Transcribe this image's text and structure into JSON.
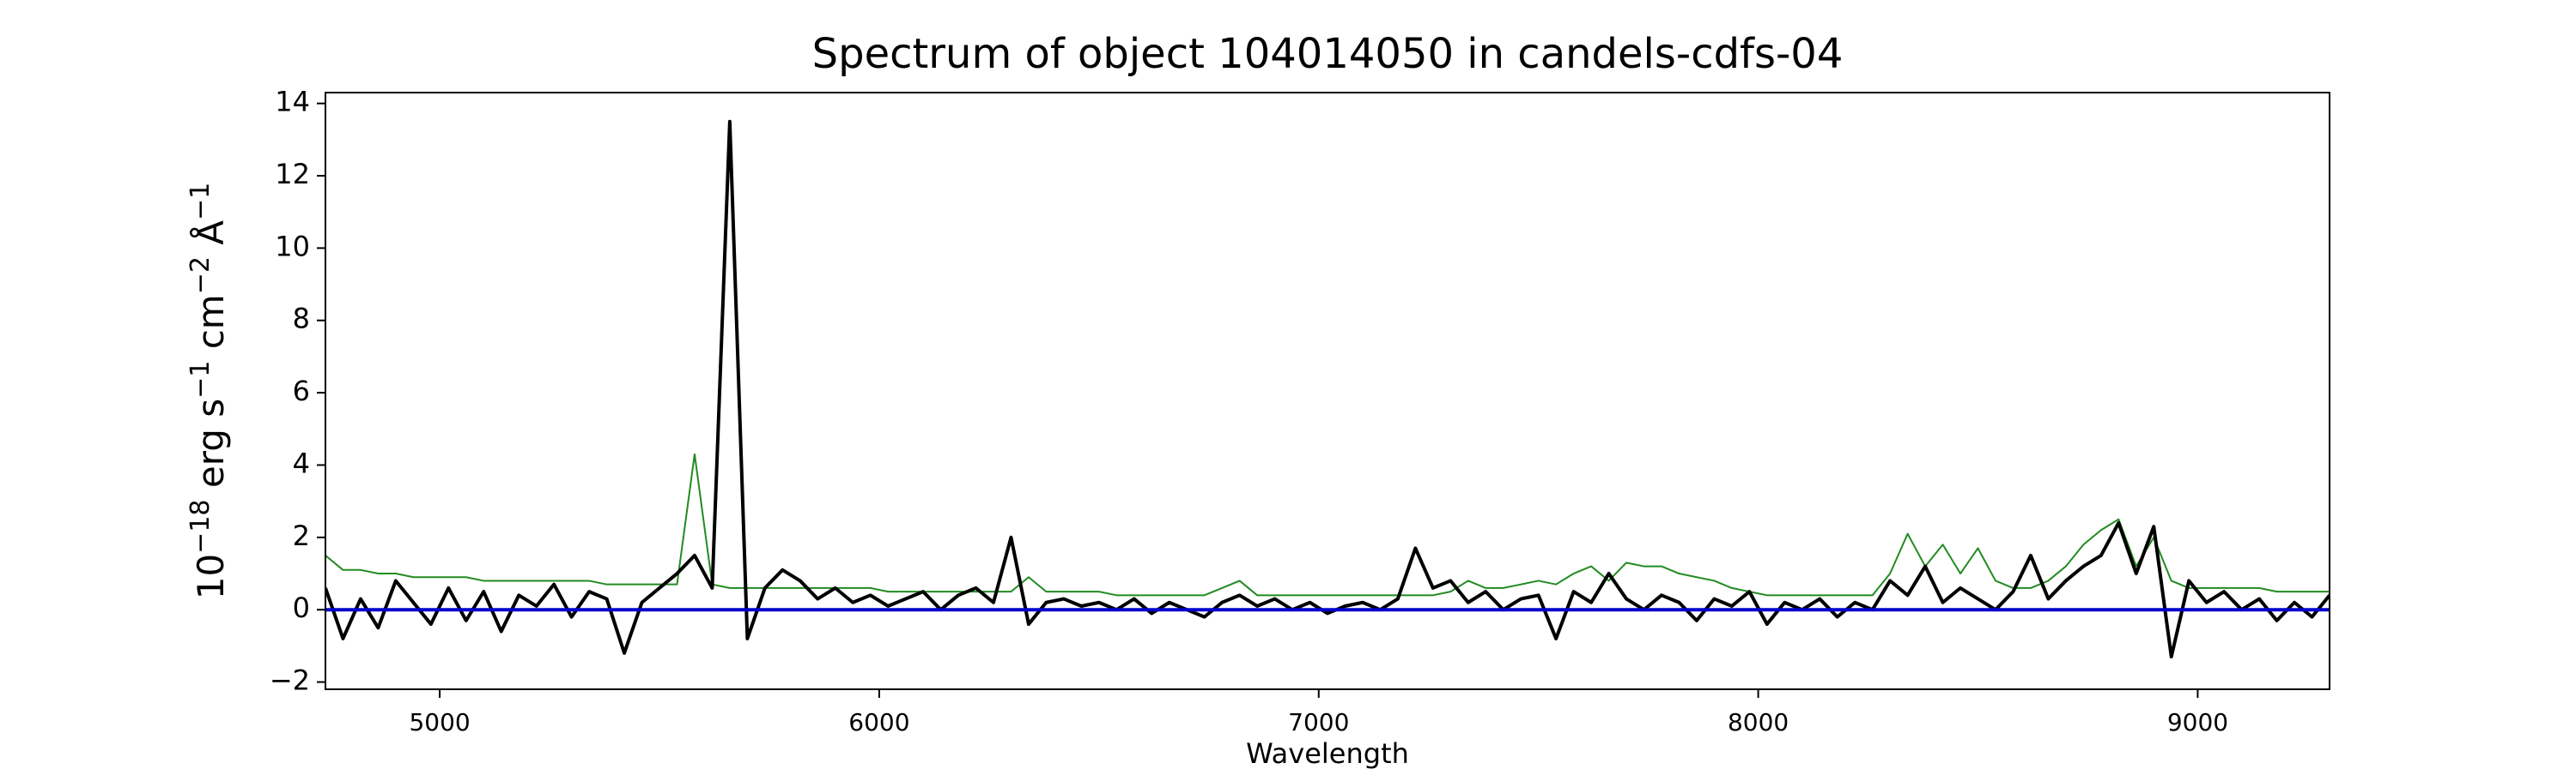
{
  "chart_data": {
    "type": "line",
    "title": "Spectrum of object 104014050 in candels-cdfs-04",
    "xlabel": "Wavelength",
    "ylabel_parts": [
      {
        "text": "10",
        "sup": "−18"
      },
      {
        "text": " erg s",
        "sup": "−1"
      },
      {
        "text": " cm",
        "sup": "−2"
      },
      {
        "text": " Å",
        "sup": "−1"
      }
    ],
    "x": [
      4740,
      4780,
      4820,
      4860,
      4900,
      4940,
      4980,
      5020,
      5060,
      5100,
      5140,
      5180,
      5220,
      5260,
      5300,
      5340,
      5380,
      5420,
      5460,
      5500,
      5540,
      5580,
      5620,
      5660,
      5700,
      5740,
      5780,
      5820,
      5860,
      5900,
      5940,
      5980,
      6020,
      6060,
      6100,
      6140,
      6180,
      6220,
      6260,
      6300,
      6340,
      6380,
      6420,
      6460,
      6500,
      6540,
      6580,
      6620,
      6660,
      6700,
      6740,
      6780,
      6820,
      6860,
      6900,
      6940,
      6980,
      7020,
      7060,
      7100,
      7140,
      7180,
      7220,
      7260,
      7300,
      7340,
      7380,
      7420,
      7460,
      7500,
      7540,
      7580,
      7620,
      7660,
      7700,
      7740,
      7780,
      7820,
      7860,
      7900,
      7940,
      7980,
      8020,
      8060,
      8100,
      8140,
      8180,
      8220,
      8260,
      8300,
      8340,
      8380,
      8420,
      8460,
      8500,
      8540,
      8580,
      8620,
      8660,
      8700,
      8740,
      8780,
      8820,
      8860,
      8900,
      8940,
      8980,
      9020,
      9060,
      9100,
      9140,
      9180,
      9220,
      9260,
      9300
    ],
    "series": [
      {
        "color": "#228b22",
        "width": 2,
        "values": [
          1.5,
          1.1,
          1.1,
          1.0,
          1.0,
          0.9,
          0.9,
          0.9,
          0.9,
          0.8,
          0.8,
          0.8,
          0.8,
          0.8,
          0.8,
          0.8,
          0.7,
          0.7,
          0.7,
          0.7,
          0.7,
          4.3,
          0.7,
          0.6,
          0.6,
          0.6,
          0.6,
          0.6,
          0.6,
          0.6,
          0.6,
          0.6,
          0.5,
          0.5,
          0.5,
          0.5,
          0.5,
          0.5,
          0.5,
          0.5,
          0.9,
          0.5,
          0.5,
          0.5,
          0.5,
          0.4,
          0.4,
          0.4,
          0.4,
          0.4,
          0.4,
          0.6,
          0.8,
          0.4,
          0.4,
          0.4,
          0.4,
          0.4,
          0.4,
          0.4,
          0.4,
          0.4,
          0.4,
          0.4,
          0.5,
          0.8,
          0.6,
          0.6,
          0.7,
          0.8,
          0.7,
          1.0,
          1.2,
          0.8,
          1.3,
          1.2,
          1.2,
          1.0,
          0.9,
          0.8,
          0.6,
          0.5,
          0.4,
          0.4,
          0.4,
          0.4,
          0.4,
          0.4,
          0.4,
          1.0,
          2.1,
          1.2,
          1.8,
          1.0,
          1.7,
          0.8,
          0.6,
          0.6,
          0.8,
          1.2,
          1.8,
          2.2,
          2.5,
          1.2,
          2.0,
          0.8,
          0.6,
          0.6,
          0.6,
          0.6,
          0.6,
          0.5,
          0.5,
          0.5,
          0.5
        ]
      },
      {
        "color": "#000000",
        "width": 4,
        "values": [
          0.6,
          -0.8,
          0.3,
          -0.5,
          0.8,
          0.2,
          -0.4,
          0.6,
          -0.3,
          0.5,
          -0.6,
          0.4,
          0.1,
          0.7,
          -0.2,
          0.5,
          0.3,
          -1.2,
          0.2,
          0.6,
          1.0,
          1.5,
          0.6,
          13.5,
          -0.8,
          0.6,
          1.1,
          0.8,
          0.3,
          0.6,
          0.2,
          0.4,
          0.1,
          0.3,
          0.5,
          0.0,
          0.4,
          0.6,
          0.2,
          2.0,
          -0.4,
          0.2,
          0.3,
          0.1,
          0.2,
          0.0,
          0.3,
          -0.1,
          0.2,
          0.0,
          -0.2,
          0.2,
          0.4,
          0.1,
          0.3,
          0.0,
          0.2,
          -0.1,
          0.1,
          0.2,
          0.0,
          0.3,
          1.7,
          0.6,
          0.8,
          0.2,
          0.5,
          0.0,
          0.3,
          0.4,
          -0.8,
          0.5,
          0.2,
          1.0,
          0.3,
          0.0,
          0.4,
          0.2,
          -0.3,
          0.3,
          0.1,
          0.5,
          -0.4,
          0.2,
          0.0,
          0.3,
          -0.2,
          0.2,
          0.0,
          0.8,
          0.4,
          1.2,
          0.2,
          0.6,
          0.3,
          0.0,
          0.5,
          1.5,
          0.3,
          0.8,
          1.2,
          1.5,
          2.4,
          1.0,
          2.3,
          -1.3,
          0.8,
          0.2,
          0.5,
          0.0,
          0.3,
          -0.3,
          0.2,
          -0.2,
          0.4
        ]
      }
    ],
    "hlines": [
      {
        "y": 0,
        "color": "#0000cc",
        "width": 4
      }
    ],
    "xlim": [
      4740,
      9300
    ],
    "ylim": [
      -2.2,
      14.3
    ],
    "xticks": [
      5000,
      6000,
      7000,
      8000,
      9000
    ],
    "yticks": [
      {
        "value": -2,
        "label": "−2"
      },
      0,
      2,
      4,
      6,
      8,
      10,
      12,
      14
    ],
    "grid": false
  }
}
